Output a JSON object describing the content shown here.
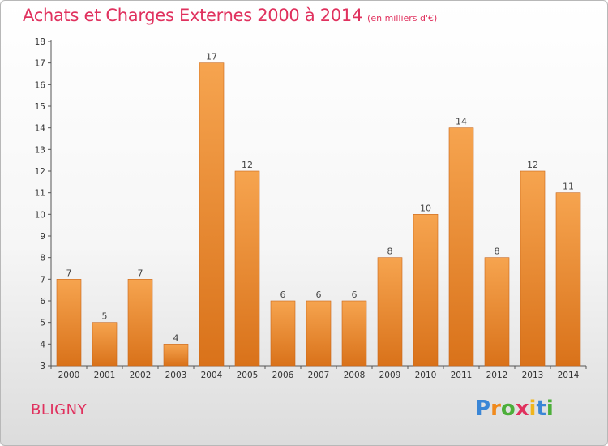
{
  "header": {
    "title": "Achats et Charges Externes 2000 à 2014",
    "subtitle": "(en milliers d'€)"
  },
  "commune": "BLIGNY",
  "logo": {
    "letters": [
      "P",
      "r",
      "o",
      "x",
      "i",
      "t",
      "i"
    ],
    "colors": [
      "#3a86d6",
      "#f08a1d",
      "#4caf3a",
      "#e0315e",
      "#f0b51d",
      "#3a86d6",
      "#4caf3a"
    ]
  },
  "colors": {
    "bar_light": "#f6a44f",
    "bar_dark": "#d9721a",
    "axis": "#555555",
    "grid": "#cccccc"
  },
  "chart_data": {
    "type": "bar",
    "title": "Achats et Charges Externes 2000 à 2014",
    "subtitle": "(en milliers d'€)",
    "xlabel": "",
    "ylabel": "",
    "categories": [
      "2000",
      "2001",
      "2002",
      "2003",
      "2004",
      "2005",
      "2006",
      "2007",
      "2008",
      "2009",
      "2010",
      "2011",
      "2012",
      "2013",
      "2014"
    ],
    "values": [
      7,
      5,
      7,
      4,
      17,
      12,
      6,
      6,
      6,
      8,
      10,
      14,
      8,
      12,
      11
    ],
    "data_labels": [
      "7",
      "5",
      "7",
      "4",
      "17",
      "12",
      "6",
      "6",
      "6",
      "8",
      "10",
      "14",
      "8",
      "12",
      "11"
    ],
    "ylim": [
      3,
      18
    ],
    "yticks": [
      3,
      4,
      5,
      6,
      7,
      8,
      9,
      10,
      11,
      12,
      13,
      14,
      15,
      16,
      17,
      18
    ],
    "ytick_labels": [
      "3",
      "4",
      "5",
      "6",
      "7",
      "8",
      "9",
      "10",
      "11",
      "12",
      "13",
      "14",
      "15",
      "16",
      "17",
      "18"
    ],
    "grid": false,
    "legend": "none"
  }
}
